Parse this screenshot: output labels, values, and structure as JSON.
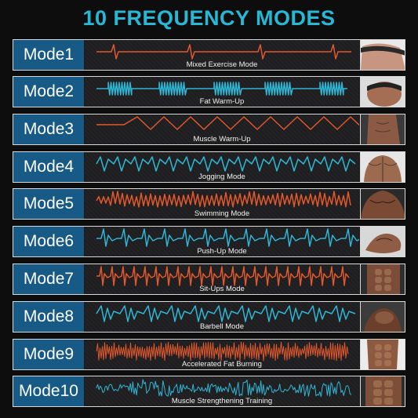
{
  "title": "10 FREQUENCY MODES",
  "colors": {
    "title": "#27b8d6",
    "mode_box": "#165a85",
    "orange_wave": "#e0582c",
    "blue_wave": "#2fb6d4"
  },
  "modes": [
    {
      "label": "Mode1",
      "description": "Mixed Exercise Mode",
      "wave_color": "orange",
      "image": "thigh-photo"
    },
    {
      "label": "Mode2",
      "description": "Fat Warm-Up",
      "wave_color": "blue",
      "image": "glutes-photo"
    },
    {
      "label": "Mode3",
      "description": "Muscle Warm-Up",
      "wave_color": "orange",
      "image": "side-torso-photo"
    },
    {
      "label": "Mode4",
      "description": "Jogging Mode",
      "wave_color": "blue",
      "image": "back-muscles-photo"
    },
    {
      "label": "Mode5",
      "description": "Swimming Mode",
      "wave_color": "orange",
      "image": "chest-photo"
    },
    {
      "label": "Mode6",
      "description": "Push-Up Mode",
      "wave_color": "blue",
      "image": "arm-photo"
    },
    {
      "label": "Mode7",
      "description": "Sit-Ups Mode",
      "wave_color": "orange",
      "image": "abs-photo"
    },
    {
      "label": "Mode8",
      "description": "Barbell Mode",
      "wave_color": "blue",
      "image": "biceps-photo"
    },
    {
      "label": "Mode9",
      "description": "Accelerated Fat Burning",
      "wave_color": "orange",
      "image": "torso-photo"
    },
    {
      "label": "Mode10",
      "description": "Muscle Strengthening Training",
      "wave_color": "blue",
      "image": "abs-closeup-photo"
    }
  ]
}
